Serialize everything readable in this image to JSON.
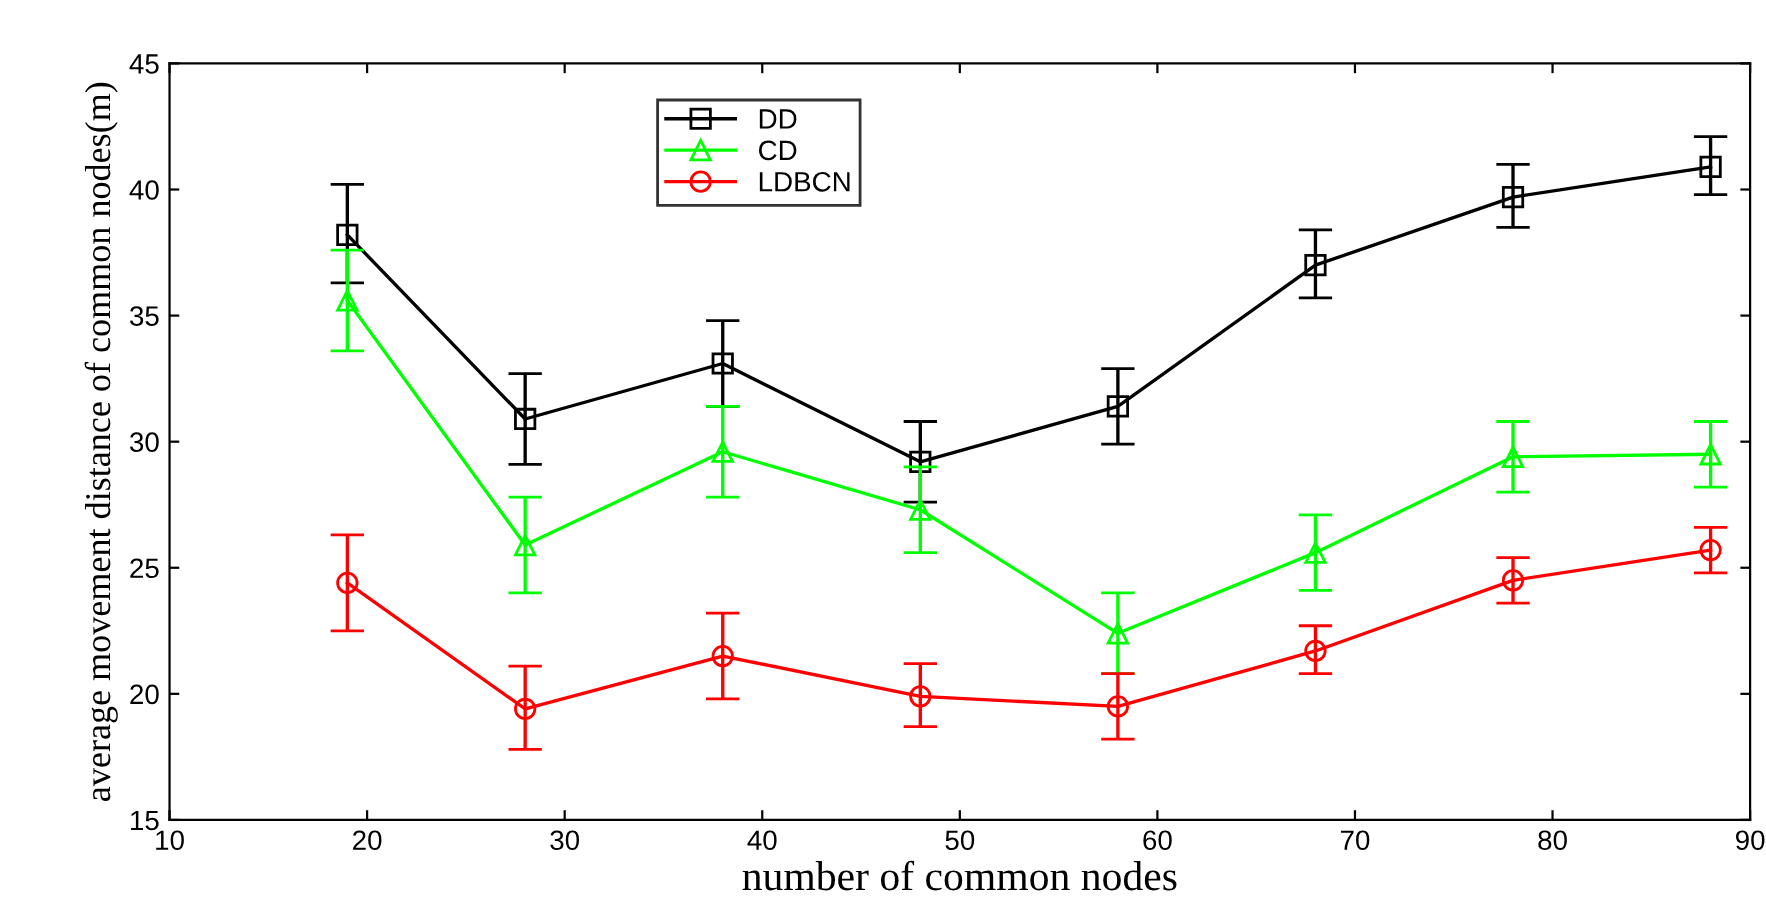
{
  "chart_data": {
    "type": "line",
    "xlabel": "number of common nodes",
    "ylabel": "average movement distance of common nodes(m)",
    "x": [
      19,
      28,
      38,
      48,
      58,
      68,
      78,
      88
    ],
    "series": [
      {
        "name": "DD",
        "color": "#000000",
        "marker": "square",
        "values": [
          38.2,
          30.9,
          33.1,
          29.2,
          31.4,
          37.0,
          39.7,
          40.9
        ],
        "errors": [
          [
            36.3,
            40.2
          ],
          [
            29.1,
            32.7
          ],
          [
            31.4,
            34.8
          ],
          [
            27.6,
            30.8
          ],
          [
            29.9,
            32.9
          ],
          [
            35.7,
            38.4
          ],
          [
            38.5,
            41.0
          ],
          [
            39.8,
            42.1
          ]
        ]
      },
      {
        "name": "CD",
        "color": "#00ff00",
        "marker": "triangle",
        "values": [
          35.6,
          25.9,
          29.6,
          27.3,
          22.4,
          25.6,
          29.4,
          29.5
        ],
        "errors": [
          [
            33.6,
            37.6
          ],
          [
            24.0,
            27.8
          ],
          [
            27.8,
            31.4
          ],
          [
            25.6,
            29.0
          ],
          [
            20.8,
            24.0
          ],
          [
            24.1,
            27.1
          ],
          [
            28.0,
            30.8
          ],
          [
            28.2,
            30.8
          ]
        ]
      },
      {
        "name": "LDBCN",
        "color": "#ff0000",
        "marker": "circle",
        "values": [
          24.4,
          19.4,
          21.5,
          19.9,
          19.5,
          21.7,
          24.5,
          25.7
        ],
        "errors": [
          [
            22.5,
            26.3
          ],
          [
            17.8,
            21.1
          ],
          [
            19.8,
            23.2
          ],
          [
            18.7,
            21.2
          ],
          [
            18.2,
            20.8
          ],
          [
            20.8,
            22.7
          ],
          [
            23.6,
            25.4
          ],
          [
            24.8,
            26.6
          ]
        ]
      }
    ],
    "xlim": [
      10,
      90
    ],
    "xticks": [
      10,
      20,
      30,
      40,
      50,
      60,
      70,
      80,
      90
    ],
    "ylim": [
      15,
      45
    ],
    "yticks": [
      15,
      20,
      25,
      30,
      35,
      40,
      45
    ],
    "grid": false,
    "legend": "top",
    "line_style": "solid"
  }
}
